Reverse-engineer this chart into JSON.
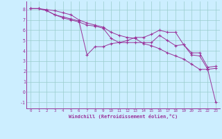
{
  "xlabel": "Windchill (Refroidissement éolien,°C)",
  "background_color": "#cceeff",
  "line_color": "#993399",
  "grid_color": "#99cccc",
  "x_data": [
    0,
    1,
    2,
    3,
    4,
    5,
    6,
    7,
    8,
    9,
    10,
    11,
    12,
    13,
    14,
    15,
    16,
    17,
    18,
    19,
    20,
    21,
    22,
    23
  ],
  "series1": [
    8.1,
    8.1,
    8.0,
    7.9,
    7.7,
    7.5,
    7.0,
    6.7,
    6.5,
    6.3,
    5.8,
    5.5,
    5.3,
    5.2,
    4.7,
    4.5,
    4.2,
    3.8,
    3.5,
    3.2,
    2.7,
    2.2,
    2.2,
    -1.0
  ],
  "series2": [
    8.1,
    8.1,
    7.9,
    7.5,
    7.3,
    7.1,
    6.9,
    3.6,
    4.4,
    4.4,
    4.7,
    4.8,
    5.0,
    5.3,
    5.3,
    5.6,
    6.0,
    5.8,
    5.8,
    4.6,
    3.6,
    3.5,
    2.2,
    2.3
  ],
  "series3": [
    8.1,
    8.1,
    7.9,
    7.5,
    7.2,
    7.0,
    6.8,
    6.5,
    6.4,
    6.2,
    5.2,
    4.8,
    4.8,
    4.8,
    4.8,
    4.8,
    5.5,
    5.0,
    4.5,
    4.6,
    3.8,
    3.8,
    2.4,
    2.5
  ],
  "ylim": [
    -1.6,
    8.8
  ],
  "xlim": [
    -0.5,
    23.5
  ],
  "yticks": [
    -1,
    0,
    1,
    2,
    3,
    4,
    5,
    6,
    7,
    8
  ],
  "xticks": [
    0,
    1,
    2,
    3,
    4,
    5,
    6,
    7,
    8,
    9,
    10,
    11,
    12,
    13,
    14,
    15,
    16,
    17,
    18,
    19,
    20,
    21,
    22,
    23
  ]
}
